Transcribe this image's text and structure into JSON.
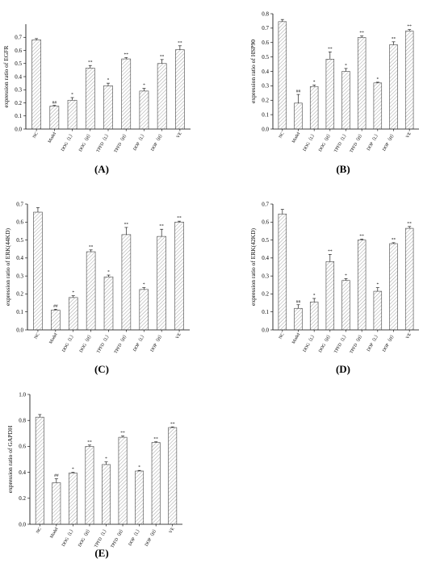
{
  "chart_data": [
    {
      "type": "bar",
      "panel": "(A)",
      "ylabel": "expression ratio of EGFR",
      "ylim": [
        0,
        0.8
      ],
      "yticks": [
        0.0,
        0.1,
        0.2,
        0.3,
        0.4,
        0.5,
        0.6,
        0.7
      ],
      "categories": [
        "NC",
        "Model",
        "DOG（L）",
        "DOG（H）",
        "TPFD（L）",
        "TPFD（H）",
        "DOP（L）",
        "DOP（H）",
        "VE"
      ],
      "values": [
        0.68,
        0.175,
        0.22,
        0.465,
        0.33,
        0.535,
        0.29,
        0.5,
        0.605
      ],
      "errors": [
        0.01,
        0.005,
        0.02,
        0.02,
        0.02,
        0.01,
        0.02,
        0.03,
        0.03
      ],
      "significance": [
        "",
        "##",
        "*",
        "**",
        "*",
        "**",
        "*",
        "**",
        "**"
      ]
    },
    {
      "type": "bar",
      "panel": "(B)",
      "ylabel": "expression ratio of HSP90",
      "ylim": [
        0,
        0.8
      ],
      "yticks": [
        0.0,
        0.1,
        0.2,
        0.3,
        0.4,
        0.5,
        0.6,
        0.7,
        0.8
      ],
      "categories": [
        "NC",
        "Model",
        "DOG（L）",
        "DOG（H）",
        "TPFD（L）",
        "TPFD（H）",
        "DOP（L）",
        "DOP（H）",
        "VE"
      ],
      "values": [
        0.745,
        0.18,
        0.295,
        0.485,
        0.4,
        0.635,
        0.32,
        0.585,
        0.68
      ],
      "errors": [
        0.015,
        0.06,
        0.01,
        0.05,
        0.02,
        0.01,
        0.005,
        0.02,
        0.01
      ],
      "significance": [
        "",
        "##",
        "*",
        "**",
        "*",
        "**",
        "*",
        "**",
        "**"
      ]
    },
    {
      "type": "bar",
      "panel": "(C)",
      "ylabel": "expression ratio of ERK(44KD)",
      "ylim": [
        0,
        0.7
      ],
      "yticks": [
        0.0,
        0.1,
        0.2,
        0.3,
        0.4,
        0.5,
        0.6,
        0.7
      ],
      "categories": [
        "NC",
        "Model",
        "DOG（L）",
        "DOG（H）",
        "TPFD（L）",
        "TPFD（H）",
        "DOP（L）",
        "DOP（H）",
        "VE"
      ],
      "values": [
        0.655,
        0.11,
        0.18,
        0.435,
        0.295,
        0.53,
        0.225,
        0.52,
        0.6
      ],
      "errors": [
        0.025,
        0.005,
        0.01,
        0.01,
        0.01,
        0.04,
        0.01,
        0.04,
        0.005
      ],
      "significance": [
        "",
        "##",
        "*",
        "**",
        "*",
        "**",
        "*",
        "**",
        "**"
      ]
    },
    {
      "type": "bar",
      "panel": "(D)",
      "ylabel": "expression ratio of ERK(42KD)",
      "ylim": [
        0,
        0.7
      ],
      "yticks": [
        0.0,
        0.1,
        0.2,
        0.3,
        0.4,
        0.5,
        0.6,
        0.7
      ],
      "categories": [
        "NC",
        "Model",
        "DOG（L）",
        "DOG（H）",
        "TPFD（L）",
        "TPFD（H）",
        "DOP（L）",
        "DOP（H）",
        "VE"
      ],
      "values": [
        0.645,
        0.12,
        0.155,
        0.38,
        0.275,
        0.5,
        0.215,
        0.48,
        0.565
      ],
      "errors": [
        0.025,
        0.02,
        0.02,
        0.04,
        0.01,
        0.005,
        0.02,
        0.005,
        0.01
      ],
      "significance": [
        "",
        "##",
        "*",
        "**",
        "*",
        "**",
        "*",
        "**",
        "**"
      ]
    },
    {
      "type": "bar",
      "panel": "(E)",
      "ylabel": "expression ratio of GAPDH",
      "ylim": [
        0,
        1.0
      ],
      "yticks": [
        0.0,
        0.2,
        0.4,
        0.6,
        0.8,
        1.0
      ],
      "categories": [
        "NC",
        "Model",
        "DOG（L）",
        "DOG（H）",
        "TPFD（L）",
        "TPFD（H）",
        "DOP（L）",
        "DOP（H）",
        "VE"
      ],
      "values": [
        0.825,
        0.32,
        0.395,
        0.6,
        0.46,
        0.67,
        0.41,
        0.63,
        0.745
      ],
      "errors": [
        0.02,
        0.03,
        0.005,
        0.01,
        0.02,
        0.01,
        0.005,
        0.005,
        0.005
      ],
      "significance": [
        "",
        "##",
        "*",
        "**",
        "*",
        "**",
        "*",
        "**",
        "**"
      ]
    }
  ]
}
